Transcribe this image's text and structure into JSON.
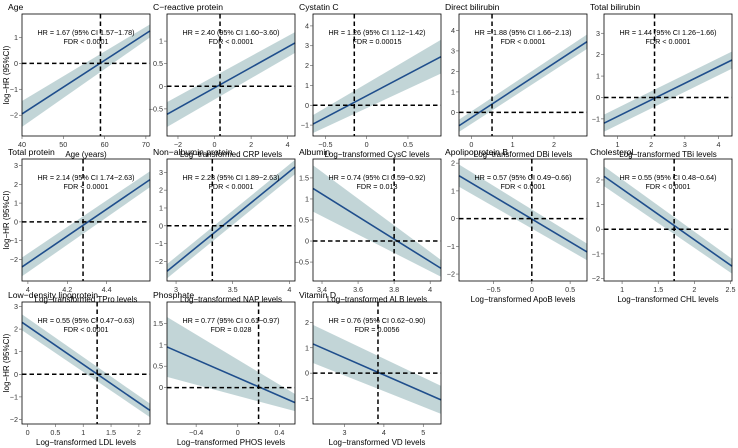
{
  "figure": {
    "ylabel": "log−HR (95%CI)"
  },
  "colors": {
    "line": "#1f4e8c",
    "band": "#9dbcbf",
    "ref": "#000000"
  },
  "chart_data": [
    {
      "type": "line",
      "title": "Age",
      "xlabel": "Age (years)",
      "xlim": [
        40,
        71
      ],
      "ylim": [
        -2.8,
        1.9
      ],
      "xticks": [
        40,
        50,
        60,
        70
      ],
      "yticks": [
        -2,
        -1,
        0,
        1
      ],
      "ref_x": 59,
      "x": [
        40,
        71
      ],
      "y": [
        -1.95,
        1.25
      ],
      "ci_lower": [
        -2.45,
        1.0
      ],
      "ci_upper": [
        -1.45,
        1.5
      ],
      "hr_text": "HR = 1.67 (95% CI 1.57−1.78)",
      "fdr_text": "FDR < 0.0001"
    },
    {
      "type": "line",
      "title": "C−reactive protein",
      "xlabel": "Log−transformed CRP levels",
      "xlim": [
        -2.6,
        4.4
      ],
      "ylim": [
        -1.1,
        1.6
      ],
      "xticks": [
        -2,
        0,
        2,
        4
      ],
      "yticks": [
        -0.5,
        0.0,
        0.5,
        1.0
      ],
      "ref_x": 0.3,
      "x": [
        -2.6,
        4.4
      ],
      "y": [
        -0.62,
        0.96
      ],
      "ci_lower": [
        -0.9,
        0.74
      ],
      "ci_upper": [
        -0.35,
        1.2
      ],
      "hr_text": "HR = 2.40 (95% CI 1.60−3.60)",
      "fdr_text": "FDR < 0.0001"
    },
    {
      "type": "line",
      "title": "Cystatin C",
      "xlabel": "Log−transformed CysC levels",
      "xlim": [
        -0.65,
        0.9
      ],
      "ylim": [
        -1.55,
        4.6
      ],
      "xticks": [
        -0.5,
        0.0,
        0.5
      ],
      "yticks": [
        -1,
        0,
        1,
        2,
        3,
        4
      ],
      "ref_x": -0.15,
      "x": [
        -0.65,
        0.9
      ],
      "y": [
        -0.95,
        2.45
      ],
      "ci_lower": [
        -1.4,
        1.6
      ],
      "ci_upper": [
        -0.5,
        3.3
      ],
      "hr_text": "HR = 1.26 (95% CI 1.12−1.42)",
      "fdr_text": "FDR = 0.00015"
    },
    {
      "type": "line",
      "title": "Direct bilirubin",
      "xlabel": "Log−transformed DBi levels",
      "xlim": [
        -0.3,
        2.8
      ],
      "ylim": [
        -1.15,
        4.8
      ],
      "xticks": [
        0,
        1,
        2
      ],
      "yticks": [
        0,
        1,
        2,
        3,
        4
      ],
      "ref_x": 0.5,
      "x": [
        -0.3,
        2.8
      ],
      "y": [
        -0.65,
        3.45
      ],
      "ci_lower": [
        -0.95,
        3.1
      ],
      "ci_upper": [
        -0.35,
        3.8
      ],
      "hr_text": "HR = 1.88 (95% CI 1.66−2.13)",
      "fdr_text": "FDR < 0.0001"
    },
    {
      "type": "line",
      "title": "Total bilirubin",
      "xlabel": "Log−transformed TBi levels",
      "xlim": [
        0.6,
        4.4
      ],
      "ylim": [
        -1.8,
        3.9
      ],
      "xticks": [
        1,
        2,
        3,
        4
      ],
      "yticks": [
        -1,
        0,
        1,
        2,
        3
      ],
      "ref_x": 2.1,
      "x": [
        0.6,
        4.4
      ],
      "y": [
        -1.2,
        1.75
      ],
      "ci_lower": [
        -1.6,
        1.35
      ],
      "ci_upper": [
        -0.8,
        2.15
      ],
      "hr_text": "HR = 1.44 (95% CI 1.26−1.66)",
      "fdr_text": "FDR < 0.0001"
    },
    {
      "type": "line",
      "title": "Total protein",
      "xlabel": "Log−transformed TPro levels",
      "xlim": [
        3.97,
        4.62
      ],
      "ylim": [
        -3.15,
        3.35
      ],
      "xticks": [
        4.0,
        4.2,
        4.4
      ],
      "yticks": [
        -2,
        -1,
        0,
        1,
        2,
        3
      ],
      "ref_x": 4.28,
      "x": [
        3.97,
        4.62
      ],
      "y": [
        -2.4,
        2.25
      ],
      "ci_lower": [
        -2.9,
        1.85
      ],
      "ci_upper": [
        -1.9,
        2.7
      ],
      "hr_text": "HR = 2.14 (95% CI 1.74−2.63)",
      "fdr_text": "FDR < 0.0001"
    },
    {
      "type": "line",
      "title": "Non−albumin protein",
      "xlabel": "Log−transformed NAP levels",
      "xlim": [
        2.92,
        4.05
      ],
      "ylim": [
        -3.1,
        3.75
      ],
      "xticks": [
        3.0,
        3.5,
        4.0
      ],
      "yticks": [
        -2,
        -1,
        0,
        1,
        2,
        3
      ],
      "ref_x": 3.32,
      "x": [
        2.92,
        4.05
      ],
      "y": [
        -2.55,
        3.3
      ],
      "ci_lower": [
        -2.95,
        2.9
      ],
      "ci_upper": [
        -2.15,
        3.7
      ],
      "hr_text": "HR = 2.23 (95% CI 1.89−2.63)",
      "fdr_text": "FDR < 0.0001"
    },
    {
      "type": "line",
      "title": "Albumin",
      "xlabel": "Log−transformed ALB levels",
      "xlim": [
        3.35,
        4.06
      ],
      "ylim": [
        -0.95,
        1.95
      ],
      "xticks": [
        3.4,
        3.6,
        3.8,
        4.0
      ],
      "yticks": [
        -0.5,
        0.0,
        0.5,
        1.0,
        1.5
      ],
      "ref_x": 3.8,
      "x": [
        3.35,
        4.06
      ],
      "y": [
        1.25,
        -0.65
      ],
      "ci_lower": [
        0.7,
        -0.85
      ],
      "ci_upper": [
        1.8,
        -0.45
      ],
      "hr_text": "HR = 0.74 (95% CI 0.59−0.92)",
      "fdr_text": "FDR = 0.013"
    },
    {
      "type": "line",
      "title": "Apolipoprotein B",
      "xlabel": "Log−transformed ApoB levels",
      "xlim": [
        -0.95,
        0.72
      ],
      "ylim": [
        -2.25,
        2.15
      ],
      "xticks": [
        -0.5,
        0.0,
        0.5
      ],
      "yticks": [
        -2,
        -1,
        0,
        1,
        2
      ],
      "ref_x": 0.0,
      "x": [
        -0.95,
        0.72
      ],
      "y": [
        1.55,
        -1.2
      ],
      "ci_lower": [
        1.15,
        -1.5
      ],
      "ci_upper": [
        1.95,
        -0.9
      ],
      "hr_text": "HR = 0.57 (95% CI 0.49−0.66)",
      "fdr_text": "FDR < 0.0001"
    },
    {
      "type": "line",
      "title": "Cholesterol",
      "xlabel": "Log−transformed CHL levels",
      "xlim": [
        0.75,
        2.52
      ],
      "ylim": [
        -2.1,
        2.85
      ],
      "xticks": [
        1.0,
        1.5,
        2.0,
        2.5
      ],
      "yticks": [
        -2,
        -1,
        0,
        1,
        2
      ],
      "ref_x": 1.72,
      "x": [
        0.75,
        2.52
      ],
      "y": [
        2.15,
        -1.5
      ],
      "ci_lower": [
        1.75,
        -1.8
      ],
      "ci_upper": [
        2.55,
        -1.2
      ],
      "hr_text": "HR = 0.55 (95% CI 0.48−0.64)",
      "fdr_text": "FDR < 0.0001"
    },
    {
      "type": "line",
      "title": "Low−density lipoprotein",
      "xlabel": "Log−transformed LDL levels",
      "xlim": [
        -0.1,
        2.2
      ],
      "ylim": [
        -2.2,
        3.2
      ],
      "xticks": [
        0.0,
        0.5,
        1.0,
        1.5,
        2.0
      ],
      "yticks": [
        -2,
        -1,
        0,
        1,
        2,
        3
      ],
      "ref_x": 1.25,
      "x": [
        -0.1,
        2.2
      ],
      "y": [
        2.3,
        -1.6
      ],
      "ci_lower": [
        1.95,
        -1.9
      ],
      "ci_upper": [
        2.65,
        -1.3
      ],
      "hr_text": "HR = 0.55 (95% CI 0.47−0.63)",
      "fdr_text": "FDR < 0.0001"
    },
    {
      "type": "line",
      "title": "Phosphate",
      "xlabel": "Log−transformed PHOS levels",
      "xlim": [
        -0.68,
        0.55
      ],
      "ylim": [
        -0.85,
        2.0
      ],
      "xticks": [
        -0.4,
        0.0,
        0.4
      ],
      "yticks": [
        0.0,
        0.5,
        1.0,
        1.5
      ],
      "ref_x": 0.2,
      "x": [
        -0.68,
        0.55
      ],
      "y": [
        0.95,
        -0.35
      ],
      "ci_lower": [
        0.25,
        -0.55
      ],
      "ci_upper": [
        1.65,
        -0.15
      ],
      "hr_text": "HR = 0.77 (95% CI 0.61−0.97)",
      "fdr_text": "FDR = 0.028"
    },
    {
      "type": "line",
      "title": "Vitamin D",
      "xlabel": "Log−transformed VD levels",
      "xlim": [
        2.2,
        5.45
      ],
      "ylim": [
        -2.0,
        2.8
      ],
      "xticks": [
        3,
        4,
        5
      ],
      "yticks": [
        -1,
        0,
        1,
        2
      ],
      "ref_x": 3.85,
      "x": [
        2.2,
        5.45
      ],
      "y": [
        1.15,
        -1.05
      ],
      "ci_lower": [
        0.4,
        -1.6
      ],
      "ci_upper": [
        1.9,
        -0.5
      ],
      "hr_text": "HR = 0.76 (95% CI 0.62−0.90)",
      "fdr_text": "FDR = 0.0056"
    }
  ]
}
